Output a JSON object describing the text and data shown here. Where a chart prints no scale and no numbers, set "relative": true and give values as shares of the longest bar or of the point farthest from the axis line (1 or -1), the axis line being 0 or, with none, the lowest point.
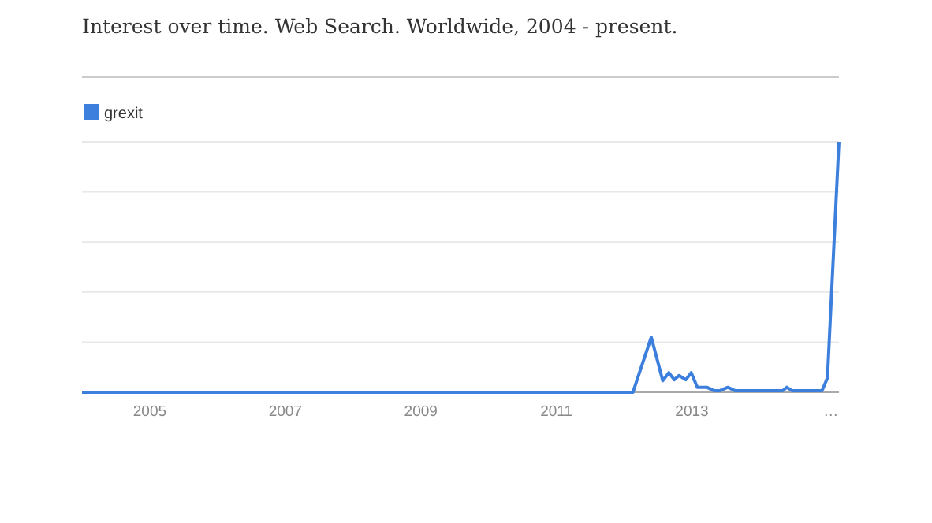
{
  "chart_data": {
    "type": "line",
    "title": "Interest over time. Web Search. Worldwide, 2004 - present.",
    "relative": true,
    "x": [
      2004.0,
      2012.13,
      2012.4,
      2012.57,
      2012.66,
      2012.74,
      2012.81,
      2012.91,
      2012.99,
      2013.08,
      2013.22,
      2013.33,
      2013.41,
      2013.53,
      2013.64,
      2014.34,
      2014.4,
      2014.48,
      2014.92,
      2015.0,
      2015.17
    ],
    "series": [
      {
        "name": "grexit",
        "color": "#3d7fdc",
        "values": [
          0,
          0,
          0.22,
          0.046,
          0.078,
          0.05,
          0.067,
          0.05,
          0.078,
          0.02,
          0.02,
          0.006,
          0.006,
          0.02,
          0.006,
          0.006,
          0.02,
          0.006,
          0.006,
          0.057,
          1
        ]
      }
    ],
    "xlim": [
      2004.0,
      2015.17
    ],
    "xticks": [
      2005,
      2007,
      2009,
      2011,
      2013,
      {
        "value": 2015.05,
        "label": "…"
      }
    ],
    "grid": "y",
    "legend": "top left",
    "marker": "none",
    "line_style": "solid"
  }
}
